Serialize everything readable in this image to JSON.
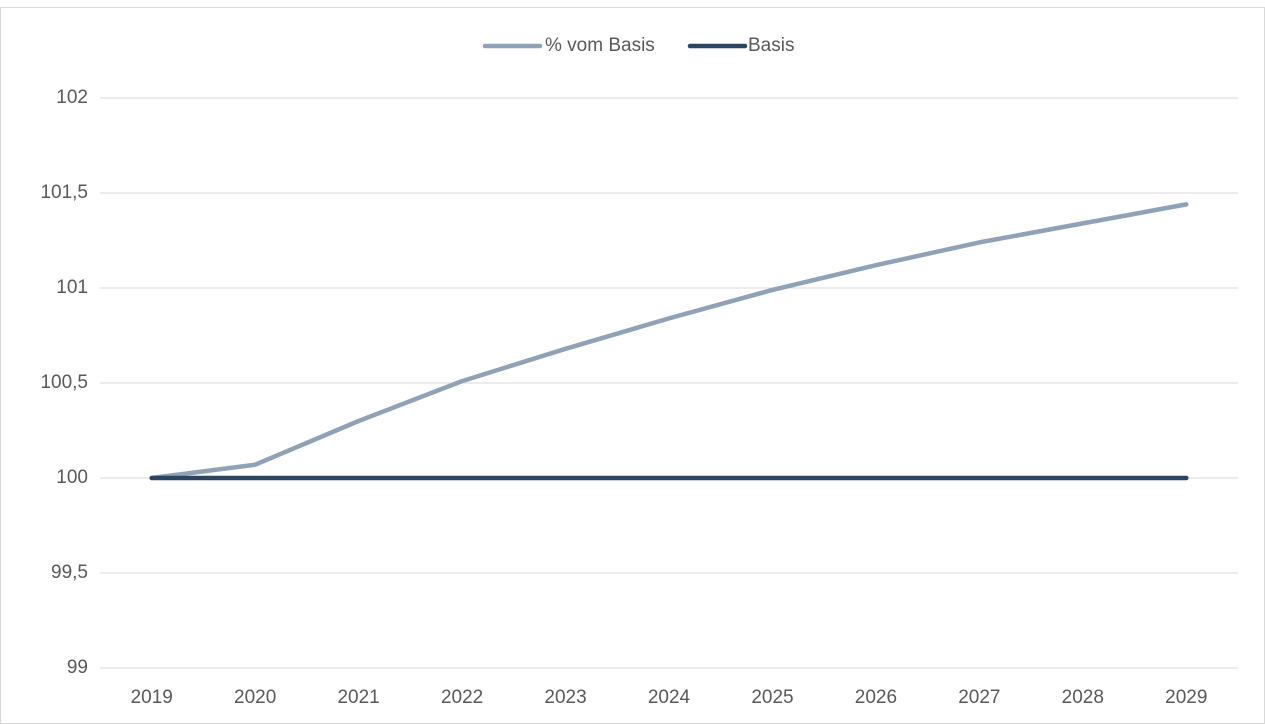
{
  "chart_data": {
    "type": "line",
    "categories": [
      "2019",
      "2020",
      "2021",
      "2022",
      "2023",
      "2024",
      "2025",
      "2026",
      "2027",
      "2028",
      "2029"
    ],
    "series": [
      {
        "name": "% vom Basis",
        "color": "#8fa2b6",
        "values": [
          100,
          100.07,
          100.3,
          100.51,
          100.68,
          100.84,
          100.99,
          101.12,
          101.24,
          101.34,
          101.44
        ]
      },
      {
        "name": "Basis",
        "color": "#2d4460",
        "values": [
          100,
          100,
          100,
          100,
          100,
          100,
          100,
          100,
          100,
          100,
          100
        ]
      }
    ],
    "ylim": [
      99,
      102
    ],
    "yticks": [
      99,
      {
        "value": 99.5,
        "label": "99,5"
      },
      100,
      {
        "value": 100.5,
        "label": "100,5"
      },
      101,
      {
        "value": 101.5,
        "label": "101,5"
      },
      102
    ],
    "grid": true,
    "legend": "top"
  }
}
